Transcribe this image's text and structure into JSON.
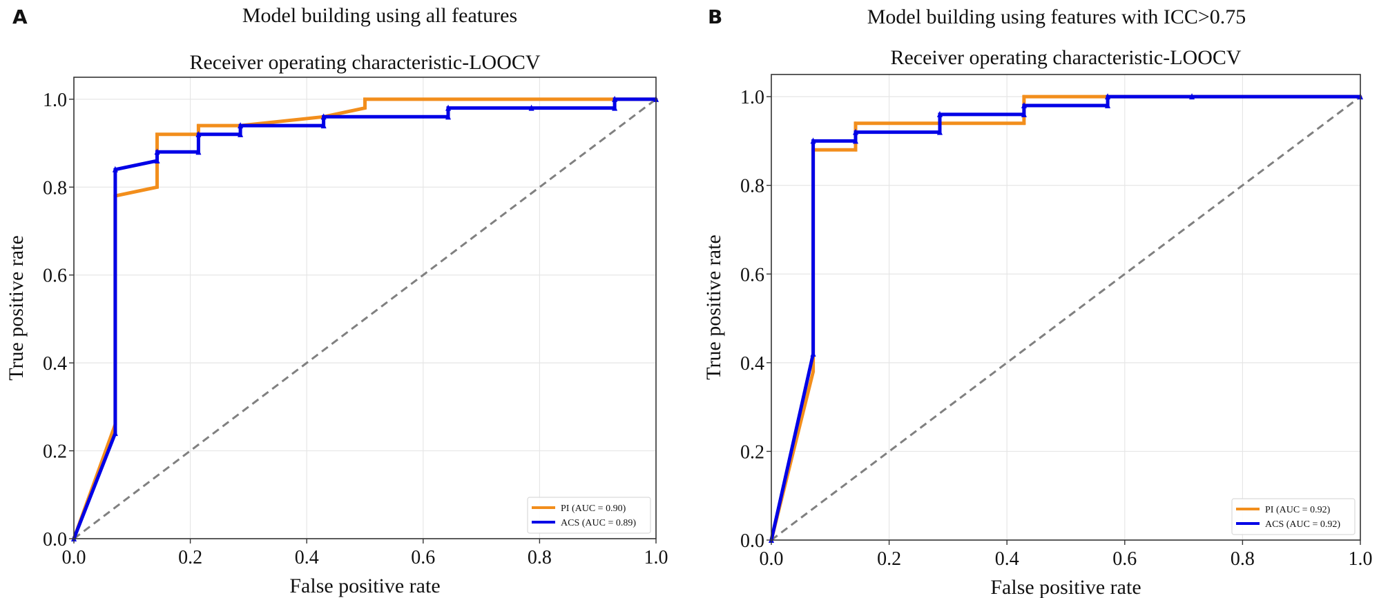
{
  "panels": [
    {
      "letter": "A",
      "suptitle": "Model building using all features"
    },
    {
      "letter": "B",
      "suptitle": "Model building using features with ICC>0.75"
    }
  ],
  "chart_data": [
    {
      "type": "line",
      "title": "Receiver operating characteristic-LOOCV",
      "xlabel": "False positive rate",
      "ylabel": "True positive rate",
      "xlim": [
        0.0,
        1.0
      ],
      "ylim": [
        0.0,
        1.05
      ],
      "xticks": [
        "0.0",
        "0.2",
        "0.4",
        "0.6",
        "0.8",
        "1.0"
      ],
      "yticks": [
        "0.0",
        "0.2",
        "0.4",
        "0.6",
        "0.8",
        "1.0"
      ],
      "grid": true,
      "legend_position": "bottom-right",
      "diagonal": {
        "style": "dashed",
        "color": "#808080",
        "points": [
          [
            0,
            0
          ],
          [
            1,
            1
          ]
        ]
      },
      "series": [
        {
          "name": "PI (AUC = 0.90)",
          "color": "#f28e1c",
          "points": [
            [
              0,
              0
            ],
            [
              0.071,
              0.26
            ],
            [
              0.071,
              0.78
            ],
            [
              0.143,
              0.8
            ],
            [
              0.143,
              0.92
            ],
            [
              0.214,
              0.92
            ],
            [
              0.214,
              0.94
            ],
            [
              0.286,
              0.94
            ],
            [
              0.429,
              0.96
            ],
            [
              0.5,
              0.98
            ],
            [
              0.5,
              1.0
            ],
            [
              0.929,
              1.0
            ],
            [
              1.0,
              1.0
            ]
          ]
        },
        {
          "name": "ACS (AUC = 0.89)",
          "color": "#0000e6",
          "points": [
            [
              0,
              0
            ],
            [
              0.071,
              0.24
            ],
            [
              0.071,
              0.84
            ],
            [
              0.143,
              0.86
            ],
            [
              0.143,
              0.88
            ],
            [
              0.214,
              0.88
            ],
            [
              0.214,
              0.92
            ],
            [
              0.286,
              0.92
            ],
            [
              0.286,
              0.94
            ],
            [
              0.429,
              0.94
            ],
            [
              0.429,
              0.96
            ],
            [
              0.643,
              0.96
            ],
            [
              0.643,
              0.98
            ],
            [
              0.786,
              0.98
            ],
            [
              0.929,
              0.98
            ],
            [
              0.929,
              1.0
            ],
            [
              1.0,
              1.0
            ]
          ]
        }
      ]
    },
    {
      "type": "line",
      "title": "Receiver operating characteristic-LOOCV",
      "xlabel": "False positive rate",
      "ylabel": "True positive rate",
      "xlim": [
        0.0,
        1.0
      ],
      "ylim": [
        0.0,
        1.05
      ],
      "xticks": [
        "0.0",
        "0.2",
        "0.4",
        "0.6",
        "0.8",
        "1.0"
      ],
      "yticks": [
        "0.0",
        "0.2",
        "0.4",
        "0.6",
        "0.8",
        "1.0"
      ],
      "grid": true,
      "legend_position": "bottom-right",
      "diagonal": {
        "style": "dashed",
        "color": "#808080",
        "points": [
          [
            0,
            0
          ],
          [
            1,
            1
          ]
        ]
      },
      "series": [
        {
          "name": "PI (AUC = 0.92)",
          "color": "#f28e1c",
          "points": [
            [
              0,
              0
            ],
            [
              0.071,
              0.38
            ],
            [
              0.071,
              0.88
            ],
            [
              0.143,
              0.88
            ],
            [
              0.143,
              0.94
            ],
            [
              0.429,
              0.94
            ],
            [
              0.429,
              1.0
            ],
            [
              0.571,
              1.0
            ],
            [
              1.0,
              1.0
            ]
          ]
        },
        {
          "name": "ACS (AUC = 0.92)",
          "color": "#0000e6",
          "points": [
            [
              0,
              0
            ],
            [
              0.071,
              0.42
            ],
            [
              0.071,
              0.9
            ],
            [
              0.143,
              0.9
            ],
            [
              0.143,
              0.92
            ],
            [
              0.286,
              0.92
            ],
            [
              0.286,
              0.96
            ],
            [
              0.429,
              0.96
            ],
            [
              0.429,
              0.98
            ],
            [
              0.571,
              0.98
            ],
            [
              0.571,
              1.0
            ],
            [
              0.714,
              1.0
            ],
            [
              1.0,
              1.0
            ]
          ]
        }
      ]
    }
  ]
}
